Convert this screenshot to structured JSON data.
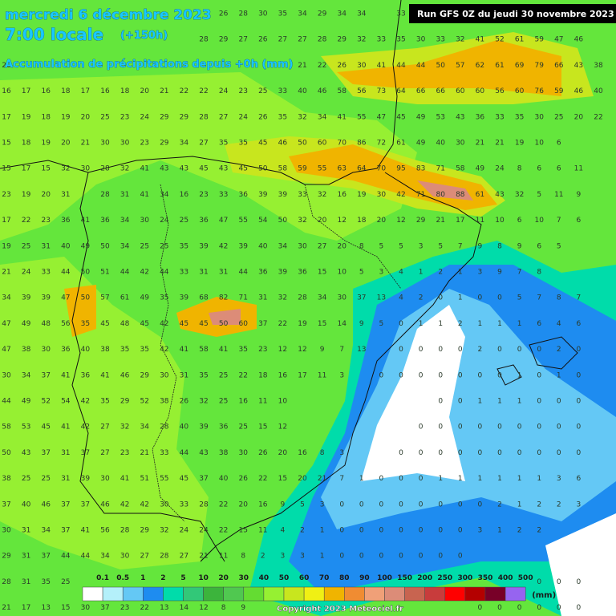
{
  "header": {
    "date": "mercredi 6 décembre 2023",
    "time": "7:00 locale",
    "lead": "(+150h)",
    "subtitle": "Accumulation de précipitations depuis +0h (mm)",
    "run": "Run GFS 0Z du jeudi 30 novembre 2023"
  },
  "grid": {
    "rows": [
      [
        null,
        null,
        null,
        null,
        null,
        null,
        null,
        null,
        null,
        null,
        null,
        26,
        28,
        30,
        35,
        34,
        29,
        34,
        34,
        null,
        33,
        null,
        null,
        null,
        null,
        null,
        null,
        null,
        null,
        null,
        null
      ],
      [
        null,
        null,
        null,
        null,
        null,
        null,
        null,
        null,
        null,
        null,
        28,
        29,
        27,
        26,
        27,
        27,
        28,
        29,
        32,
        33,
        35,
        30,
        33,
        32,
        41,
        52,
        61,
        59,
        47,
        46,
        null
      ],
      [
        20,
        null,
        null,
        null,
        null,
        null,
        null,
        null,
        null,
        null,
        null,
        null,
        null,
        null,
        null,
        21,
        22,
        26,
        30,
        41,
        44,
        44,
        50,
        57,
        62,
        61,
        69,
        79,
        66,
        43,
        38
      ],
      [
        16,
        17,
        16,
        18,
        17,
        16,
        18,
        20,
        21,
        22,
        22,
        24,
        23,
        25,
        33,
        40,
        46,
        58,
        56,
        73,
        64,
        66,
        66,
        60,
        60,
        56,
        60,
        76,
        59,
        46,
        40
      ],
      [
        17,
        19,
        18,
        19,
        20,
        25,
        23,
        24,
        29,
        29,
        28,
        27,
        24,
        26,
        35,
        32,
        34,
        41,
        55,
        47,
        45,
        49,
        53,
        43,
        36,
        33,
        35,
        30,
        25,
        20,
        22
      ],
      [
        15,
        18,
        19,
        20,
        21,
        30,
        30,
        23,
        29,
        34,
        27,
        35,
        35,
        45,
        46,
        50,
        60,
        70,
        86,
        72,
        61,
        49,
        40,
        30,
        21,
        21,
        19,
        10,
        6,
        null,
        null
      ],
      [
        15,
        17,
        15,
        32,
        30,
        28,
        32,
        41,
        43,
        43,
        45,
        43,
        45,
        50,
        58,
        59,
        55,
        63,
        64,
        70,
        95,
        83,
        71,
        58,
        49,
        24,
        8,
        6,
        6,
        11,
        null
      ],
      [
        23,
        19,
        20,
        31,
        null,
        28,
        31,
        41,
        34,
        16,
        23,
        33,
        36,
        39,
        39,
        33,
        32,
        16,
        19,
        30,
        42,
        71,
        80,
        88,
        61,
        43,
        32,
        5,
        11,
        9,
        null
      ],
      [
        17,
        22,
        23,
        36,
        41,
        36,
        34,
        30,
        24,
        25,
        36,
        47,
        55,
        54,
        50,
        32,
        20,
        12,
        18,
        20,
        12,
        29,
        21,
        17,
        11,
        10,
        6,
        10,
        7,
        6,
        null
      ],
      [
        19,
        25,
        31,
        40,
        49,
        50,
        34,
        25,
        25,
        35,
        39,
        42,
        39,
        40,
        34,
        30,
        27,
        20,
        8,
        5,
        5,
        3,
        5,
        7,
        9,
        8,
        9,
        6,
        5,
        null,
        null
      ],
      [
        21,
        24,
        33,
        44,
        50,
        51,
        44,
        42,
        44,
        33,
        31,
        31,
        44,
        36,
        39,
        36,
        15,
        10,
        5,
        3,
        4,
        1,
        2,
        1,
        3,
        9,
        7,
        8,
        null,
        null,
        null
      ],
      [
        34,
        39,
        39,
        47,
        50,
        57,
        61,
        49,
        35,
        39,
        68,
        82,
        71,
        31,
        32,
        28,
        34,
        30,
        37,
        13,
        4,
        2,
        0,
        1,
        0,
        0,
        5,
        7,
        8,
        7,
        null
      ],
      [
        47,
        49,
        48,
        56,
        35,
        45,
        48,
        45,
        42,
        45,
        45,
        50,
        60,
        37,
        22,
        19,
        15,
        14,
        9,
        5,
        0,
        1,
        1,
        2,
        1,
        1,
        1,
        6,
        4,
        6,
        null
      ],
      [
        47,
        38,
        30,
        36,
        40,
        38,
        35,
        35,
        42,
        41,
        58,
        41,
        35,
        23,
        12,
        12,
        9,
        7,
        13,
        null,
        0,
        0,
        0,
        0,
        2,
        0,
        0,
        0,
        2,
        0,
        null
      ],
      [
        30,
        34,
        37,
        41,
        36,
        41,
        46,
        29,
        30,
        31,
        35,
        25,
        22,
        18,
        16,
        17,
        11,
        3,
        null,
        0,
        0,
        0,
        0,
        0,
        0,
        0,
        1,
        0,
        1,
        0,
        null
      ],
      [
        44,
        49,
        52,
        54,
        42,
        35,
        29,
        52,
        38,
        26,
        32,
        25,
        16,
        11,
        10,
        null,
        null,
        null,
        null,
        null,
        null,
        null,
        0,
        0,
        1,
        1,
        1,
        0,
        0,
        0,
        null
      ],
      [
        58,
        53,
        45,
        41,
        42,
        27,
        32,
        34,
        28,
        40,
        39,
        36,
        25,
        15,
        12,
        null,
        null,
        null,
        null,
        null,
        null,
        0,
        0,
        0,
        0,
        0,
        0,
        0,
        0,
        0,
        null
      ],
      [
        50,
        43,
        37,
        31,
        37,
        27,
        23,
        21,
        33,
        44,
        43,
        38,
        30,
        26,
        20,
        16,
        8,
        3,
        null,
        null,
        0,
        0,
        0,
        0,
        0,
        0,
        0,
        0,
        0,
        0,
        null
      ],
      [
        38,
        25,
        25,
        31,
        39,
        30,
        41,
        51,
        55,
        45,
        37,
        40,
        26,
        22,
        15,
        20,
        21,
        7,
        1,
        0,
        0,
        0,
        1,
        1,
        1,
        1,
        1,
        1,
        3,
        6,
        null
      ],
      [
        37,
        40,
        46,
        37,
        37,
        46,
        42,
        42,
        30,
        33,
        28,
        22,
        20,
        16,
        9,
        5,
        3,
        0,
        0,
        0,
        0,
        0,
        0,
        0,
        0,
        2,
        1,
        2,
        2,
        3,
        null
      ],
      [
        30,
        31,
        34,
        37,
        41,
        56,
        28,
        29,
        32,
        24,
        24,
        22,
        15,
        11,
        4,
        2,
        1,
        0,
        0,
        0,
        0,
        0,
        0,
        0,
        3,
        1,
        2,
        2,
        null,
        null,
        null
      ],
      [
        29,
        31,
        37,
        44,
        44,
        34,
        30,
        27,
        28,
        27,
        21,
        11,
        8,
        2,
        3,
        3,
        1,
        0,
        0,
        0,
        0,
        0,
        0,
        0,
        null,
        null,
        null,
        null,
        null,
        null,
        null
      ],
      [
        28,
        31,
        35,
        25,
        null,
        null,
        null,
        null,
        null,
        null,
        null,
        null,
        null,
        null,
        null,
        null,
        null,
        null,
        null,
        null,
        null,
        null,
        null,
        null,
        null,
        null,
        null,
        0,
        0,
        0,
        null
      ],
      [
        21,
        17,
        13,
        15,
        30,
        37,
        23,
        22,
        13,
        14,
        12,
        8,
        9,
        null,
        null,
        null,
        null,
        null,
        null,
        null,
        null,
        null,
        null,
        null,
        0,
        0,
        0,
        0,
        0,
        0,
        null
      ]
    ]
  },
  "legend": {
    "levels": [
      0.1,
      0.5,
      1,
      2,
      5,
      10,
      20,
      30,
      40,
      50,
      60,
      70,
      80,
      90,
      100,
      150,
      200,
      250,
      300,
      350,
      400,
      500
    ],
    "colors": [
      "#ffffff",
      "#b4f0fa",
      "#64c8f5",
      "#1e8cf0",
      "#00dcaa",
      "#32c878",
      "#3cb43c",
      "#50c850",
      "#64dc32",
      "#96f032",
      "#c8e61e",
      "#f0f014",
      "#f0b400",
      "#f08c32",
      "#f0a078",
      "#dc8c78",
      "#c86450",
      "#c83c3c",
      "#ff0000",
      "#b40000",
      "#780028",
      "#9664f0"
    ],
    "unit": "(mm)"
  },
  "footer": {
    "copyright": "Copyright 2023 Meteociel.fr"
  }
}
